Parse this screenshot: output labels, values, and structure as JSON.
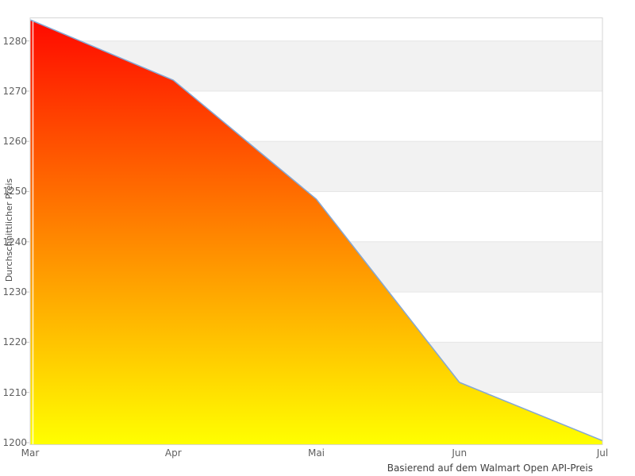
{
  "chart_data": {
    "type": "area",
    "x": [
      "Mar",
      "Apr",
      "Mai",
      "Jun",
      "Jul"
    ],
    "series": [
      {
        "name": "Durchschnittlicher Preis",
        "values": [
          1284.2,
          1272.2,
          1248.5,
          1212.0,
          1200.4
        ]
      }
    ],
    "title": "",
    "xlabel": "",
    "ylabel": "Durchschnittlicher Preis",
    "caption": "Basierend auf dem Walmart Open API-Preis",
    "ylim": [
      1199.6,
      1284.6
    ],
    "yticks": [
      1200,
      1210,
      1220,
      1230,
      1240,
      1250,
      1260,
      1270,
      1280
    ],
    "grid": true,
    "legend": false,
    "alternating_bands": true,
    "band_ranges": [
      [
        1210,
        1220
      ],
      [
        1230,
        1240
      ],
      [
        1250,
        1260
      ],
      [
        1270,
        1280
      ]
    ],
    "colors": {
      "line": "#84a7d4",
      "gradient_top": "#ff0800",
      "gradient_bottom": "#ffff00",
      "band": "#f2f2f2",
      "gridline": "#e6e6e6",
      "border": "#d6d6d6",
      "axis_tick": "#c8c8c8",
      "tick_text": "#606060",
      "caption_text": "#404040"
    }
  }
}
